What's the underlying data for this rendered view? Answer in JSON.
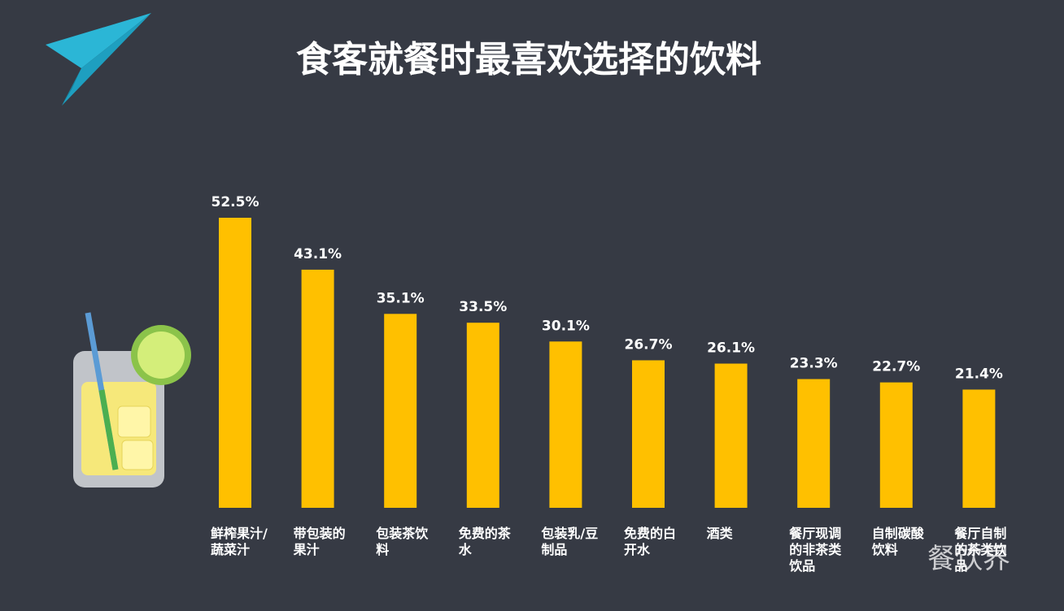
{
  "chart_data": {
    "type": "bar",
    "title": "食客就餐时最喜欢选择的饮料",
    "categories": [
      "鲜榨果汁/蔬菜汁",
      "带包装的果汁",
      "包装茶饮料",
      "免费的茶水",
      "包装乳/豆制品",
      "免费的白开水",
      "酒类",
      "餐厅现调的非茶类饮品",
      "自制碳酸饮料",
      "餐厅自制的茶类饮品"
    ],
    "values": [
      52.5,
      43.1,
      35.1,
      33.5,
      30.1,
      26.7,
      26.1,
      23.3,
      22.7,
      21.4
    ],
    "value_labels": [
      "52.5%",
      "43.1%",
      "35.1%",
      "33.5%",
      "30.1%",
      "26.7%",
      "26.1%",
      "23.3%",
      "22.7%",
      "21.4%"
    ],
    "color": "#ffc000",
    "watermark": "餐饮界"
  }
}
